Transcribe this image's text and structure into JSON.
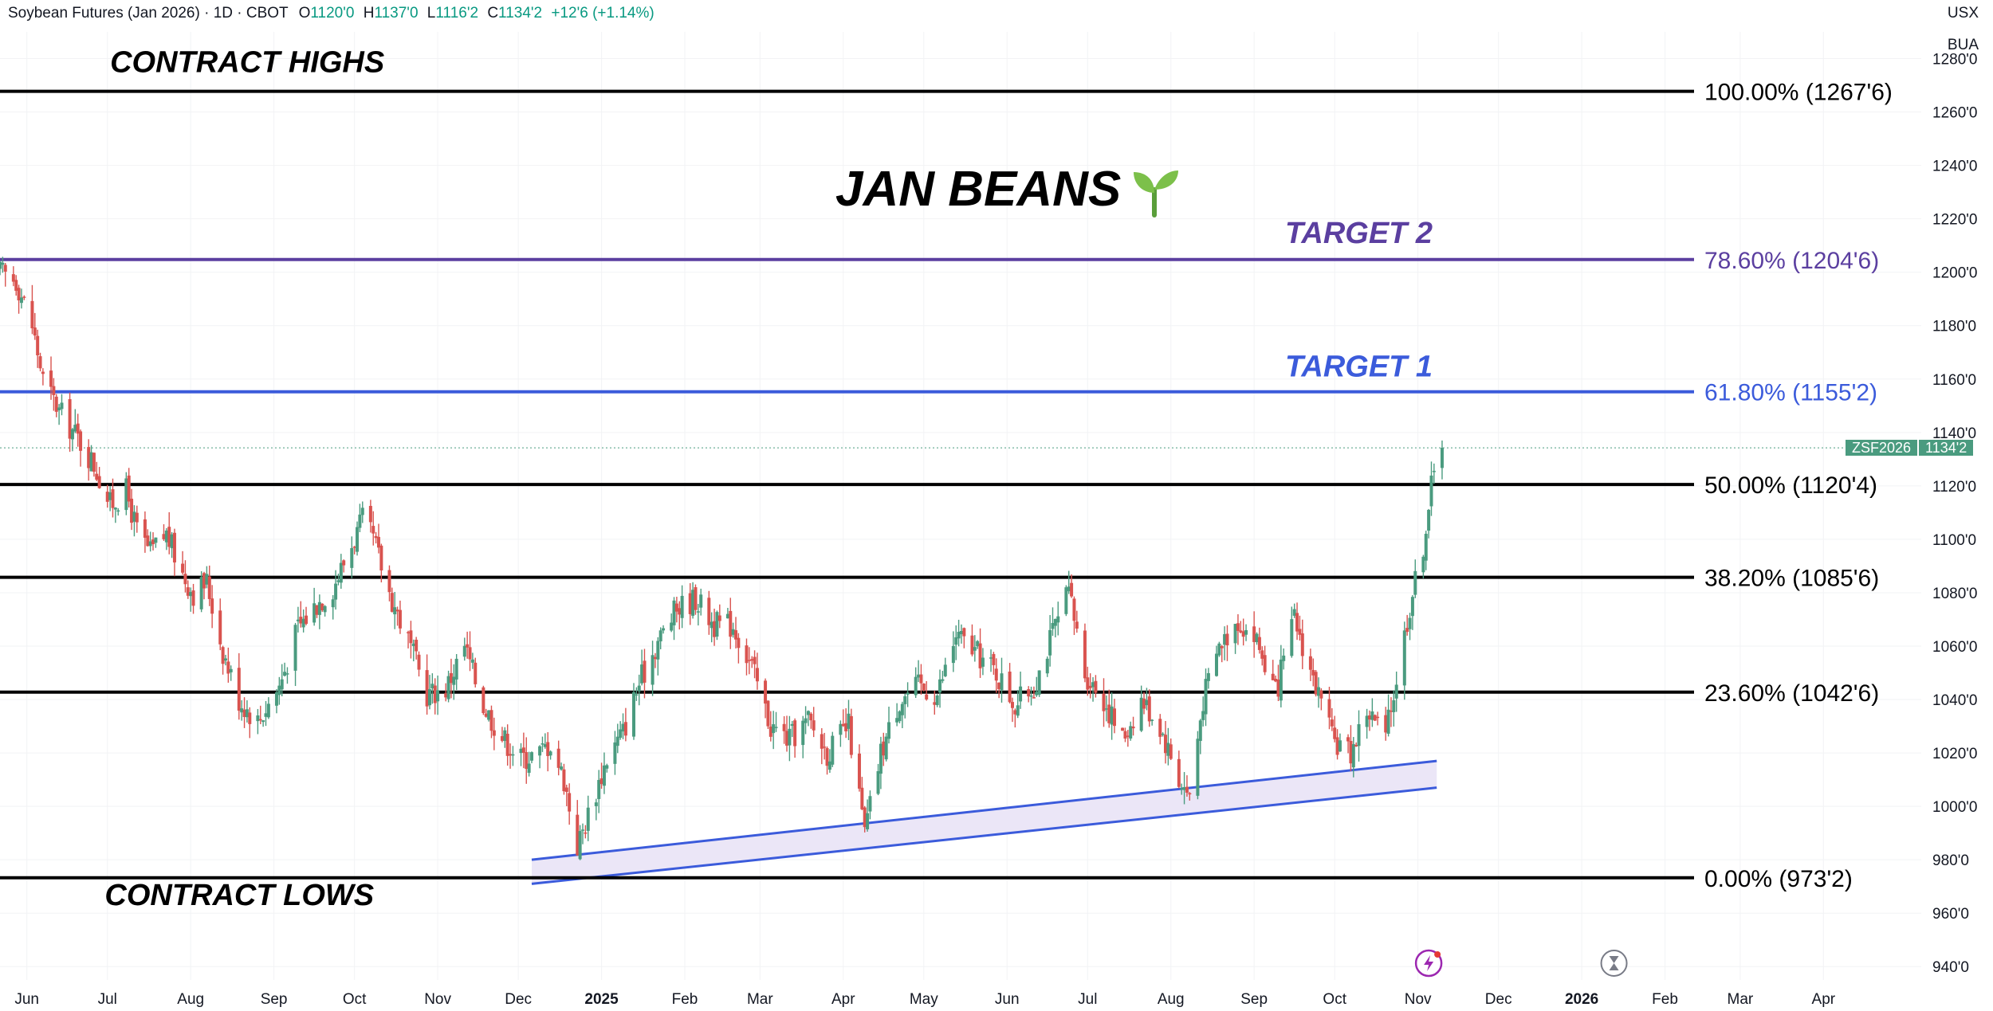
{
  "header": {
    "symbol_title": "Soybean Futures (Jan 2026) · 1D · CBOT",
    "open_label": "O",
    "open": "1120'0",
    "high_label": "H",
    "high": "1137'0",
    "low_label": "L",
    "low": "1116'2",
    "close_label": "C",
    "close": "1134'2",
    "change": "+12'6 (+1.14%)"
  },
  "units": {
    "line1": "USX",
    "line2": "BUA"
  },
  "price_tag": {
    "symbol": "ZSF2026",
    "price": "1134'2"
  },
  "chart_data": {
    "type": "candlestick",
    "title": "JAN BEANS",
    "title_icon": "seedling-icon",
    "y_range": [
      935,
      1290
    ],
    "y_ticks": [
      940,
      960,
      980,
      1000,
      1020,
      1040,
      1060,
      1080,
      1100,
      1120,
      1140,
      1160,
      1180,
      1200,
      1220,
      1240,
      1260,
      1280
    ],
    "y_tick_labels": [
      "940'0",
      "960'0",
      "980'0",
      "1000'0",
      "1020'0",
      "1040'0",
      "1060'0",
      "1080'0",
      "1100'0",
      "1120'0",
      "1140'0",
      "1160'0",
      "1180'0",
      "1200'0",
      "1220'0",
      "1240'0",
      "1260'0",
      "1280'0"
    ],
    "x_range": [
      "2024-05-22",
      "2026-04-30"
    ],
    "x_ticks": [
      {
        "date": "2024-06-01",
        "label": "Jun",
        "bold": false
      },
      {
        "date": "2024-07-01",
        "label": "Jul",
        "bold": false
      },
      {
        "date": "2024-08-01",
        "label": "Aug",
        "bold": false
      },
      {
        "date": "2024-09-01",
        "label": "Sep",
        "bold": false
      },
      {
        "date": "2024-10-01",
        "label": "Oct",
        "bold": false
      },
      {
        "date": "2024-11-01",
        "label": "Nov",
        "bold": false
      },
      {
        "date": "2024-12-01",
        "label": "Dec",
        "bold": false
      },
      {
        "date": "2025-01-01",
        "label": "2025",
        "bold": true
      },
      {
        "date": "2025-02-01",
        "label": "Feb",
        "bold": false
      },
      {
        "date": "2025-03-01",
        "label": "Mar",
        "bold": false
      },
      {
        "date": "2025-04-01",
        "label": "Apr",
        "bold": false
      },
      {
        "date": "2025-05-01",
        "label": "May",
        "bold": false
      },
      {
        "date": "2025-06-01",
        "label": "Jun",
        "bold": false
      },
      {
        "date": "2025-07-01",
        "label": "Jul",
        "bold": false
      },
      {
        "date": "2025-08-01",
        "label": "Aug",
        "bold": false
      },
      {
        "date": "2025-09-01",
        "label": "Sep",
        "bold": false
      },
      {
        "date": "2025-10-01",
        "label": "Oct",
        "bold": false
      },
      {
        "date": "2025-11-01",
        "label": "Nov",
        "bold": false
      },
      {
        "date": "2025-12-01",
        "label": "Dec",
        "bold": false
      },
      {
        "date": "2026-01-01",
        "label": "2026",
        "bold": true
      },
      {
        "date": "2026-02-01",
        "label": "Feb",
        "bold": false
      },
      {
        "date": "2026-03-01",
        "label": "Mar",
        "bold": false
      },
      {
        "date": "2026-04-01",
        "label": "Apr",
        "bold": false
      }
    ],
    "fib_levels": [
      {
        "value": 1267.75,
        "label": "100.00% (1267'6)",
        "color": "#000000"
      },
      {
        "value": 1204.75,
        "label": "78.60% (1204'6)",
        "color": "#5b3fa0"
      },
      {
        "value": 1155.25,
        "label": "61.80% (1155'2)",
        "color": "#3b5bdb"
      },
      {
        "value": 1120.5,
        "label": "50.00% (1120'4)",
        "color": "#000000"
      },
      {
        "value": 1085.75,
        "label": "38.20% (1085'6)",
        "color": "#000000"
      },
      {
        "value": 1042.75,
        "label": "23.60% (1042'6)",
        "color": "#000000"
      },
      {
        "value": 973.25,
        "label": "0.00% (973'2)",
        "color": "#000000"
      }
    ],
    "annotations": [
      {
        "text": "CONTRACT HIGHS",
        "date": "2024-07-02",
        "price": 1275,
        "color": "#000000"
      },
      {
        "text": "TARGET 2",
        "date": "2025-10-10",
        "price": 1211,
        "color": "#5b3fa0"
      },
      {
        "text": "TARGET 1",
        "date": "2025-10-10",
        "price": 1161,
        "color": "#3b5bdb"
      },
      {
        "text": "CONTRACT LOWS",
        "date": "2024-06-30",
        "price": 963,
        "color": "#000000"
      }
    ],
    "channel": {
      "lower": [
        [
          "2024-12-06",
          971
        ],
        [
          "2025-11-08",
          1007
        ]
      ],
      "upper": [
        [
          "2024-12-06",
          980
        ],
        [
          "2025-11-08",
          1017
        ]
      ],
      "color": "#3b5bdb",
      "fill": "#ebe6f7"
    },
    "last_price": 1134.25,
    "up_color": "#4a9b7f",
    "down_color": "#d9534f",
    "price_path": [
      [
        "2024-05-22",
        1200
      ],
      [
        "2024-05-28",
        1197
      ],
      [
        "2024-06-03",
        1180
      ],
      [
        "2024-06-07",
        1160
      ],
      [
        "2024-06-13",
        1148
      ],
      [
        "2024-06-20",
        1138
      ],
      [
        "2024-06-26",
        1128
      ],
      [
        "2024-07-02",
        1113
      ],
      [
        "2024-07-08",
        1118
      ],
      [
        "2024-07-12",
        1103
      ],
      [
        "2024-07-17",
        1095
      ],
      [
        "2024-07-23",
        1102
      ],
      [
        "2024-07-29",
        1087
      ],
      [
        "2024-08-02",
        1080
      ],
      [
        "2024-08-07",
        1084
      ],
      [
        "2024-08-13",
        1058
      ],
      [
        "2024-08-19",
        1040
      ],
      [
        "2024-08-26",
        1032
      ],
      [
        "2024-09-03",
        1045
      ],
      [
        "2024-09-10",
        1067
      ],
      [
        "2024-09-17",
        1076
      ],
      [
        "2024-09-23",
        1082
      ],
      [
        "2024-09-30",
        1098
      ],
      [
        "2024-10-04",
        1107
      ],
      [
        "2024-10-08",
        1100
      ],
      [
        "2024-10-14",
        1080
      ],
      [
        "2024-10-21",
        1062
      ],
      [
        "2024-10-28",
        1042
      ],
      [
        "2024-11-04",
        1044
      ],
      [
        "2024-11-11",
        1060
      ],
      [
        "2024-11-18",
        1038
      ],
      [
        "2024-11-25",
        1026
      ],
      [
        "2024-12-02",
        1018
      ],
      [
        "2024-12-09",
        1020
      ],
      [
        "2024-12-13",
        1024
      ],
      [
        "2024-12-18",
        1010
      ],
      [
        "2024-12-23",
        985
      ],
      [
        "2024-12-27",
        997
      ],
      [
        "2025-01-03",
        1018
      ],
      [
        "2025-01-09",
        1028
      ],
      [
        "2025-01-15",
        1046
      ],
      [
        "2025-01-22",
        1062
      ],
      [
        "2025-01-29",
        1074
      ],
      [
        "2025-02-05",
        1078
      ],
      [
        "2025-02-12",
        1068
      ],
      [
        "2025-02-19",
        1068
      ],
      [
        "2025-02-26",
        1052
      ],
      [
        "2025-03-05",
        1030
      ],
      [
        "2025-03-12",
        1025
      ],
      [
        "2025-03-19",
        1032
      ],
      [
        "2025-03-26",
        1020
      ],
      [
        "2025-04-03",
        1030
      ],
      [
        "2025-04-09",
        990
      ],
      [
        "2025-04-15",
        1020
      ],
      [
        "2025-04-22",
        1040
      ],
      [
        "2025-04-29",
        1045
      ],
      [
        "2025-05-06",
        1042
      ],
      [
        "2025-05-13",
        1064
      ],
      [
        "2025-05-20",
        1058
      ],
      [
        "2025-05-28",
        1050
      ],
      [
        "2025-06-04",
        1038
      ],
      [
        "2025-06-11",
        1045
      ],
      [
        "2025-06-18",
        1065
      ],
      [
        "2025-06-24",
        1080
      ],
      [
        "2025-06-30",
        1050
      ],
      [
        "2025-07-07",
        1040
      ],
      [
        "2025-07-14",
        1025
      ],
      [
        "2025-07-21",
        1040
      ],
      [
        "2025-07-28",
        1030
      ],
      [
        "2025-08-04",
        1010
      ],
      [
        "2025-08-08",
        1004
      ],
      [
        "2025-08-13",
        1040
      ],
      [
        "2025-08-19",
        1060
      ],
      [
        "2025-08-26",
        1070
      ],
      [
        "2025-09-02",
        1062
      ],
      [
        "2025-09-09",
        1042
      ],
      [
        "2025-09-16",
        1070
      ],
      [
        "2025-09-23",
        1048
      ],
      [
        "2025-09-30",
        1025
      ],
      [
        "2025-10-07",
        1020
      ],
      [
        "2025-10-13",
        1036
      ],
      [
        "2025-10-20",
        1026
      ],
      [
        "2025-10-24",
        1048
      ],
      [
        "2025-10-29",
        1075
      ],
      [
        "2025-11-03",
        1098
      ],
      [
        "2025-11-06",
        1120
      ],
      [
        "2025-11-10",
        1134.25
      ]
    ]
  },
  "bottom_icons": [
    {
      "name": "lightning-event-icon",
      "date": "2025-11-05"
    },
    {
      "name": "hourglass-icon",
      "date": "2026-01-13"
    }
  ]
}
